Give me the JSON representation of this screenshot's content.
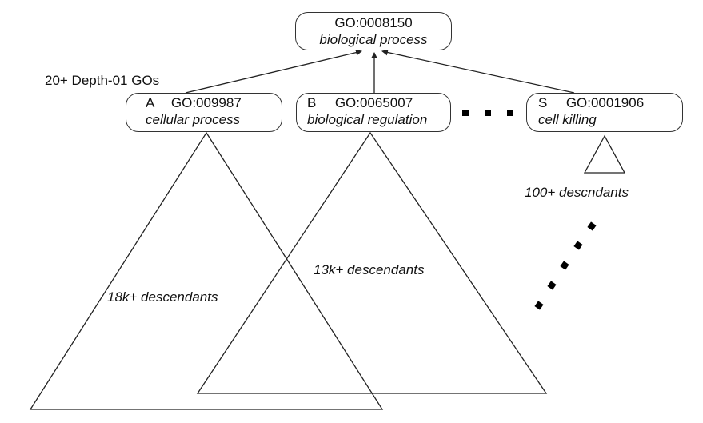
{
  "root": {
    "id": "GO:0008150",
    "name": "biological process"
  },
  "depth_label": "20+ Depth-01 GOs",
  "children": [
    {
      "letter": "A",
      "id": "GO:009987",
      "name": "cellular process",
      "descendants": "18k+ descendants"
    },
    {
      "letter": "B",
      "id": "GO:0065007",
      "name": "biological regulation",
      "descendants": "13k+ descendants"
    },
    {
      "letter": "S",
      "id": "GO:0001906",
      "name": "cell killing",
      "descendants": "100+ descndants"
    }
  ]
}
